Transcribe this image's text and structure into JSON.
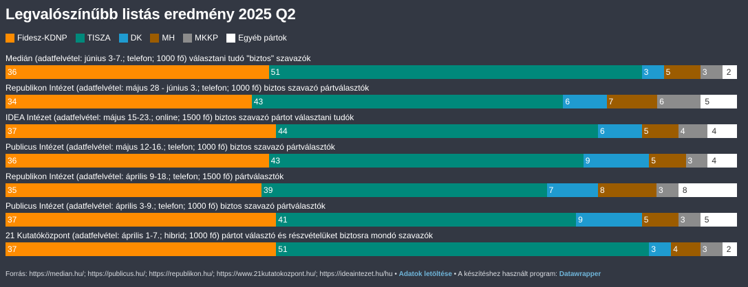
{
  "title": "Legvalószínűbb listás eredmény 2025 Q2",
  "legend": [
    {
      "name": "Fidesz-KDNP",
      "color": "#FF8C00"
    },
    {
      "name": "TISZA",
      "color": "#00897B"
    },
    {
      "name": "DK",
      "color": "#1F9BD0"
    },
    {
      "name": "MH",
      "color": "#9C5C00"
    },
    {
      "name": "MKKP",
      "color": "#8C8C8C"
    },
    {
      "name": "Egyéb pártok",
      "color": "#FFFFFF"
    }
  ],
  "chart_data": {
    "type": "bar",
    "stacked": true,
    "orientation": "horizontal",
    "series_names": [
      "Fidesz-KDNP",
      "TISZA",
      "DK",
      "MH",
      "MKKP",
      "Egyéb pártok"
    ],
    "rows": [
      {
        "label": "Medián (adatfelvétel: június 3-7.; telefon; 1000 fő) választani tudó \"biztos\" szavazók",
        "values": [
          36,
          51,
          3,
          5,
          3,
          2
        ]
      },
      {
        "label": "Republikon Intézet (adatfelvétel: május 28 - június 3.; telefon; 1000 fő) biztos szavazó pártválasztók",
        "values": [
          34,
          43,
          6,
          7,
          6,
          5
        ]
      },
      {
        "label": "IDEA Intézet (adatfelvétel: május 15-23.; online; 1500 fő) biztos szavazó pártot választani tudók",
        "values": [
          37,
          44,
          6,
          5,
          4,
          4
        ]
      },
      {
        "label": "Publicus Intézet (adatfelvétel: május 12-16.; telefon; 1000 fő) biztos szavazó pártválasztók",
        "values": [
          36,
          43,
          9,
          5,
          3,
          4
        ]
      },
      {
        "label": "Republikon Intézet (adatfelvétel: április 9-18.; telefon; 1500 fő) pártválasztók",
        "values": [
          35,
          39,
          7,
          8,
          3,
          8
        ]
      },
      {
        "label": "Publicus Intézet (adatfelvétel: április 3-9.; telefon; 1000 fő) biztos szavazó pártválasztók",
        "values": [
          37,
          41,
          9,
          5,
          3,
          5
        ]
      },
      {
        "label": "21 Kutatóközpont (adatfelvétel: április 1-7.; hibrid; 1000 fő) pártot választó és részvételüket biztosra mondó szavazók",
        "values": [
          37,
          51,
          3,
          4,
          3,
          2
        ]
      }
    ]
  },
  "footer": {
    "sources": "Forrás: https://median.hu/; https://publicus.hu/; https://republikon.hu/; https://www.21kutatokozpont.hu/; https://ideaintezet.hu/hu",
    "sep": "•",
    "download_link": "Adatok letöltése",
    "made_with": "A készítéshez használt program:",
    "tool_link": "Datawrapper"
  }
}
